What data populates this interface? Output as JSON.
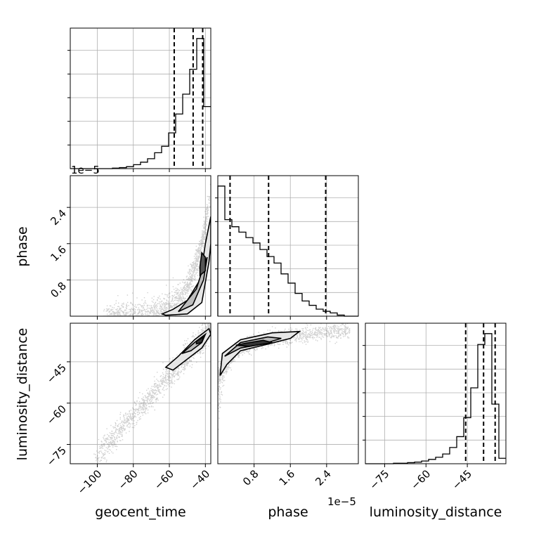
{
  "chart_data": {
    "type": "corner",
    "parameters": [
      "geocent_time",
      "phase",
      "luminosity_distance"
    ],
    "axis_labels": {
      "x": [
        "geocent_time",
        "phase",
        "luminosity_distance"
      ],
      "y": [
        "",
        "phase",
        "luminosity_distance"
      ]
    },
    "offset_labels": {
      "phase_x": "1e−5",
      "phase_y": "1e−5"
    },
    "ranges": {
      "geocent_time": [
        -115,
        -37
      ],
      "phase": [
        0,
        3.1
      ],
      "luminosity_distance": [
        -82,
        -31
      ]
    },
    "ticks": {
      "geocent_time": [
        {
          "v": -100,
          "label": "−100"
        },
        {
          "v": -80,
          "label": "−80"
        },
        {
          "v": -60,
          "label": "−60"
        },
        {
          "v": -40,
          "label": "−40"
        }
      ],
      "phase": [
        {
          "v": 0.8,
          "label": "0.8"
        },
        {
          "v": 1.6,
          "label": "1.6"
        },
        {
          "v": 2.4,
          "label": "2.4"
        }
      ],
      "luminosity_distance": [
        {
          "v": -75,
          "label": "−75"
        },
        {
          "v": -60,
          "label": "−60"
        },
        {
          "v": -45,
          "label": "−45"
        }
      ]
    },
    "histograms": [
      {
        "parameter": "geocent_time",
        "bins": [
          -115,
          -111.1,
          -107.2,
          -103.3,
          -99.4,
          -95.5,
          -91.6,
          -87.7,
          -83.8,
          -79.9,
          -76,
          -72.1,
          -68.2,
          -64.3,
          -60.4,
          -56.5,
          -52.6,
          -48.7,
          -44.8,
          -40.9,
          -37
        ],
        "counts": [
          0,
          0,
          0,
          0,
          0,
          0,
          1,
          2,
          4,
          8,
          13,
          20,
          32,
          45,
          72,
          110,
          150,
          200,
          262,
          125
        ],
        "quantiles": [
          -57.3,
          -46.8,
          -41.5
        ]
      },
      {
        "parameter": "phase",
        "bins": [
          0,
          0.155,
          0.31,
          0.465,
          0.62,
          0.775,
          0.93,
          1.085,
          1.24,
          1.395,
          1.55,
          1.705,
          1.86,
          2.015,
          2.17,
          2.325,
          2.48,
          2.635,
          2.79,
          2.945,
          3.1
        ],
        "counts": [
          240,
          178,
          165,
          155,
          145,
          135,
          123,
          110,
          98,
          78,
          61,
          42,
          28,
          20,
          13,
          9,
          6,
          2,
          0,
          0
        ],
        "quantiles": [
          0.27,
          1.12,
          2.38
        ]
      },
      {
        "parameter": "luminosity_distance",
        "bins": [
          -82,
          -79.45,
          -76.9,
          -74.35,
          -71.8,
          -69.25,
          -66.7,
          -64.15,
          -61.6,
          -59.05,
          -56.5,
          -53.95,
          -51.4,
          -48.85,
          -46.3,
          -43.75,
          -41.2,
          -38.65,
          -36.1,
          -33.55,
          -31
        ],
        "counts": [
          0,
          0,
          0,
          0,
          1,
          1,
          2,
          3,
          5,
          8,
          12,
          18,
          30,
          50,
          85,
          140,
          220,
          240,
          110,
          10
        ],
        "quantiles": [
          -45.6,
          -39.1,
          -34.9
        ]
      }
    ],
    "grid": true
  }
}
